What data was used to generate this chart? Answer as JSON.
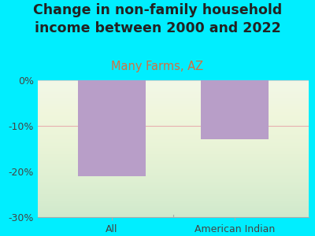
{
  "title": "Change in non-family household\nincome between 2000 and 2022",
  "subtitle": "Many Farms, AZ",
  "categories": [
    "All",
    "American Indian"
  ],
  "values": [
    -21.0,
    -13.0
  ],
  "bar_color": "#b89ec8",
  "background_color": "#00eeff",
  "plot_bg_color": "#eef5e8",
  "ylim": [
    -30,
    0
  ],
  "yticks": [
    0,
    -10,
    -20,
    -30
  ],
  "yticklabels": [
    "0%",
    "-10%",
    "-20%",
    "-30%"
  ],
  "title_fontsize": 12.5,
  "subtitle_fontsize": 10.5,
  "subtitle_color": "#d47040",
  "tick_color": "#444444",
  "grid_color": "#e8b0b0",
  "bar_width": 0.55
}
